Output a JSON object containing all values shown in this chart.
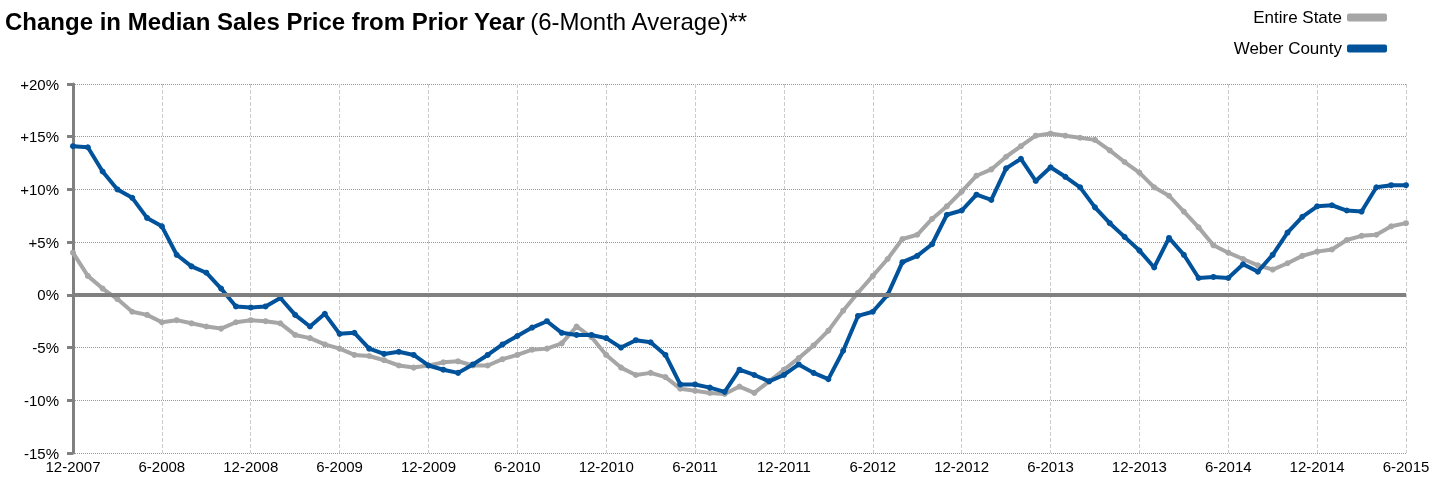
{
  "chart_data": {
    "type": "line",
    "title": "Change in Median Sales Price from Prior Year",
    "subtitle": "(6-Month Average)**",
    "categories": [
      "12-2007",
      null,
      null,
      null,
      null,
      null,
      "6-2008",
      null,
      null,
      null,
      null,
      null,
      "12-2008",
      null,
      null,
      null,
      null,
      null,
      "6-2009",
      null,
      null,
      null,
      null,
      null,
      "12-2009",
      null,
      null,
      null,
      null,
      null,
      "6-2010",
      null,
      null,
      null,
      null,
      null,
      "12-2010",
      null,
      null,
      null,
      null,
      null,
      "6-2011",
      null,
      null,
      null,
      null,
      null,
      "12-2011",
      null,
      null,
      null,
      null,
      null,
      "6-2012",
      null,
      null,
      null,
      null,
      null,
      "12-2012",
      null,
      null,
      null,
      null,
      null,
      "6-2013",
      null,
      null,
      null,
      null,
      null,
      "12-2013",
      null,
      null,
      null,
      null,
      null,
      "6-2014",
      null,
      null,
      null,
      null,
      null,
      "12-2014",
      null,
      null,
      null,
      null,
      null,
      "6-2015"
    ],
    "series": [
      {
        "name": "Entire State",
        "color": "#a6a6a6",
        "values": [
          4.0,
          1.8,
          0.6,
          -0.4,
          -1.6,
          -1.9,
          -2.6,
          -2.4,
          -2.7,
          -3.0,
          -3.2,
          -2.6,
          -2.4,
          -2.5,
          -2.7,
          -3.8,
          -4.1,
          -4.7,
          -5.1,
          -5.7,
          -5.8,
          -6.2,
          -6.7,
          -6.9,
          -6.7,
          -6.4,
          -6.3,
          -6.7,
          -6.7,
          -6.1,
          -5.7,
          -5.2,
          -5.1,
          -4.6,
          -3.0,
          -4.0,
          -5.7,
          -6.9,
          -7.6,
          -7.4,
          -7.8,
          -8.9,
          -9.1,
          -9.3,
          -9.4,
          -8.7,
          -9.3,
          -8.2,
          -7.1,
          -6.0,
          -4.8,
          -3.4,
          -1.5,
          0.2,
          1.8,
          3.4,
          5.3,
          5.7,
          7.2,
          8.4,
          9.8,
          11.3,
          11.9,
          13.1,
          14.1,
          15.1,
          15.3,
          15.1,
          14.9,
          14.7,
          13.7,
          12.6,
          11.6,
          10.2,
          9.4,
          7.9,
          6.4,
          4.7,
          4.0,
          3.4,
          2.8,
          2.4,
          3.0,
          3.7,
          4.1,
          4.3,
          5.2,
          5.6,
          5.7,
          6.5,
          6.8
        ]
      },
      {
        "name": "Weber County",
        "color": "#00529b",
        "values": [
          14.1,
          14.0,
          11.7,
          10.0,
          9.2,
          7.3,
          6.5,
          3.8,
          2.7,
          2.1,
          0.6,
          -1.1,
          -1.2,
          -1.1,
          -0.3,
          -1.9,
          -3.0,
          -1.8,
          -3.7,
          -3.6,
          -5.1,
          -5.6,
          -5.4,
          -5.7,
          -6.7,
          -7.1,
          -7.4,
          -6.6,
          -5.7,
          -4.7,
          -3.9,
          -3.1,
          -2.5,
          -3.6,
          -3.8,
          -3.8,
          -4.1,
          -5.0,
          -4.3,
          -4.5,
          -5.7,
          -8.5,
          -8.5,
          -8.8,
          -9.2,
          -7.1,
          -7.6,
          -8.2,
          -7.6,
          -6.6,
          -7.4,
          -8.0,
          -5.3,
          -2.0,
          -1.6,
          0.0,
          3.1,
          3.7,
          4.8,
          7.6,
          8.0,
          9.5,
          9.0,
          12.0,
          12.9,
          10.8,
          12.1,
          11.2,
          10.2,
          8.3,
          6.8,
          5.5,
          4.2,
          2.6,
          5.4,
          3.8,
          1.6,
          1.7,
          1.6,
          2.9,
          2.2,
          3.8,
          5.9,
          7.4,
          8.4,
          8.5,
          8.0,
          7.9,
          10.2,
          10.4,
          10.4
        ]
      }
    ],
    "ylim": [
      -15,
      20
    ],
    "yticks": [
      {
        "value": -15,
        "label": "-15%"
      },
      {
        "value": -10,
        "label": "-10%"
      },
      {
        "value": -5,
        "label": "-5%"
      },
      {
        "value": 0,
        "label": "0%"
      },
      {
        "value": 5,
        "label": "+5%"
      },
      {
        "value": 10,
        "label": "+10%"
      },
      {
        "value": 15,
        "label": "+15%"
      },
      {
        "value": 20,
        "label": "+20%"
      }
    ],
    "ref_lines": [
      {
        "axis": "y",
        "value": 0,
        "label": null,
        "color": "#808080"
      }
    ],
    "grid": true,
    "legend": "top right",
    "marker": "circle",
    "line_style": "solid"
  }
}
